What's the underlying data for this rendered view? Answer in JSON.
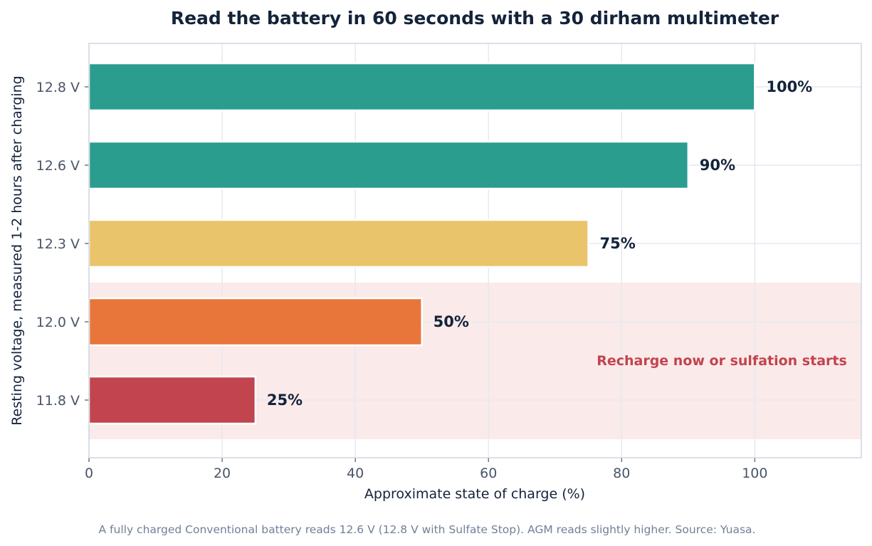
{
  "chart_data": {
    "type": "bar",
    "orientation": "horizontal",
    "title": "Read the battery in 60 seconds with a 30 dirham multimeter",
    "xlabel": "Approximate state of charge (%)",
    "ylabel": "Resting voltage, measured 1-2 hours after charging",
    "categories": [
      "12.8 V",
      "12.6 V",
      "12.3 V",
      "12.0 V",
      "11.8 V"
    ],
    "values": [
      100,
      90,
      75,
      50,
      25
    ],
    "value_labels": [
      "100%",
      "90%",
      "75%",
      "50%",
      "25%"
    ],
    "bar_colors": [
      "#2a9d8f",
      "#2a9d8f",
      "#e9c46a",
      "#e8763b",
      "#c1444e"
    ],
    "xlim": [
      0,
      116
    ],
    "xticks": [
      0,
      20,
      40,
      60,
      80,
      100
    ],
    "xtick_labels": [
      "0",
      "20",
      "40",
      "60",
      "80",
      100
    ],
    "grid": true,
    "highlight_band": {
      "categories": [
        "12.0 V",
        "11.8 V"
      ],
      "color": "#fbeaea",
      "annotation": "Recharge now or sulfation starts",
      "annotation_color": "#c1444e"
    },
    "footnote": "A fully charged Conventional battery reads 12.6 V (12.8 V with Sulfate Stop). AGM reads slightly higher. Source: Yuasa."
  },
  "colors": {
    "title": "#13233a",
    "tick": "#4a5568",
    "grid": "#e6e9f0",
    "axis_frame": "#cfd6e0",
    "footnote": "#718096"
  }
}
